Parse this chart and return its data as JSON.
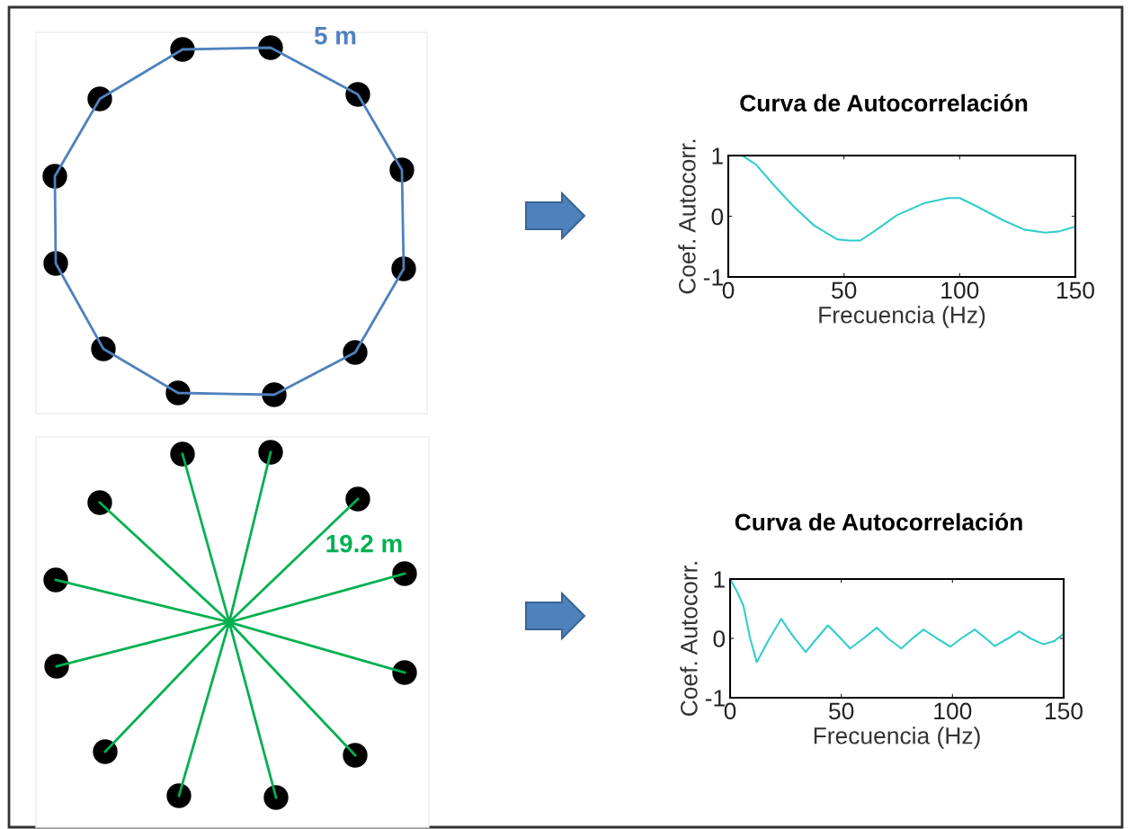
{
  "chart_data": [
    {
      "type": "line",
      "title": "Curva de Autocorrelación",
      "xlabel": "Frecuencia (Hz)",
      "ylabel": "Coef. Autocorr.",
      "annotations": [
        "5 m"
      ],
      "xlim": [
        0,
        150
      ],
      "ylim": [
        -1,
        1
      ],
      "xticks": [
        0,
        50,
        100,
        150
      ],
      "yticks": [
        -1,
        0,
        1
      ],
      "grid": false,
      "legend": false,
      "series": [
        {
          "color": "#33cccc",
          "x": [
            6,
            12,
            20,
            28,
            37,
            47,
            52,
            57,
            63,
            73,
            85,
            95,
            100,
            107,
            119,
            128,
            137,
            143,
            150
          ],
          "values": [
            1,
            0.85,
            0.5,
            0.17,
            -0.15,
            -0.38,
            -0.4,
            -0.4,
            -0.25,
            0.02,
            0.22,
            0.3,
            0.3,
            0.17,
            -0.07,
            -0.22,
            -0.27,
            -0.25,
            -0.17
          ]
        }
      ]
    },
    {
      "type": "line",
      "title": "Curva de Autocorrelación",
      "xlabel": "Frecuencia (Hz)",
      "ylabel": "Coef. Autocorr.",
      "annotations": [
        "19.2 m"
      ],
      "xlim": [
        0,
        150
      ],
      "ylim": [
        -1,
        1
      ],
      "xticks": [
        0,
        50,
        100,
        150
      ],
      "yticks": [
        -1,
        0,
        1
      ],
      "grid": false,
      "legend": false,
      "series": [
        {
          "color": "#33cccc",
          "x": [
            0,
            3,
            6,
            9,
            12,
            17,
            23,
            28,
            34,
            39,
            44,
            49,
            54,
            60,
            66,
            71,
            77,
            82,
            87,
            93,
            99,
            104,
            110,
            115,
            119,
            125,
            130,
            135,
            141,
            146,
            150
          ],
          "values": [
            1,
            0.8,
            0.55,
            0.0,
            -0.4,
            -0.05,
            0.33,
            0.05,
            -0.23,
            0.0,
            0.22,
            0.03,
            -0.17,
            0.0,
            0.18,
            0.0,
            -0.17,
            0.0,
            0.15,
            0.0,
            -0.14,
            0.0,
            0.15,
            0.0,
            -0.13,
            0.0,
            0.12,
            0.0,
            -0.1,
            -0.04,
            0.08
          ]
        }
      ]
    }
  ]
}
